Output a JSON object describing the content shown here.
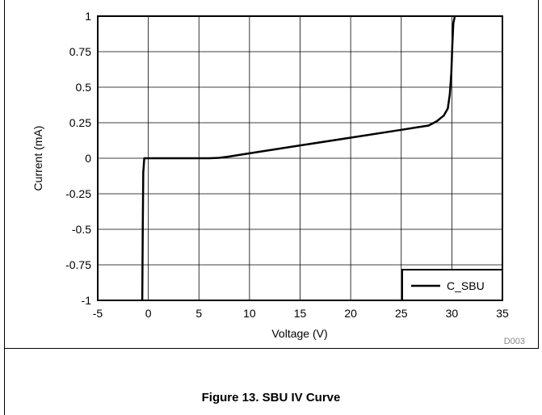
{
  "figure_caption": "Figure 13. SBU IV Curve",
  "figure_id": "D003",
  "chart_data": {
    "type": "line",
    "xlabel": "Voltage (V)",
    "ylabel": "Current (mA)",
    "xlim": [
      -5,
      35
    ],
    "ylim": [
      -1,
      1
    ],
    "xticks": [
      -5,
      0,
      5,
      10,
      15,
      20,
      25,
      30,
      35
    ],
    "xtick_labels": [
      "-5",
      "0",
      "5",
      "10",
      "15",
      "20",
      "25",
      "30",
      "35"
    ],
    "yticks": [
      -1,
      -0.75,
      -0.5,
      -0.25,
      0,
      0.25,
      0.5,
      0.75,
      1
    ],
    "ytick_labels": [
      "-1",
      "-0.75",
      "-0.5",
      "-0.25",
      "0",
      "0.25",
      "0.5",
      "0.75",
      "1"
    ],
    "grid": true,
    "legend_position": "bottom-right",
    "series": [
      {
        "name": "C_SBU",
        "color": "#000000",
        "x": [
          -0.6,
          -0.55,
          -0.5,
          -0.4,
          0,
          2,
          4,
          6,
          7,
          8,
          10,
          15,
          20,
          25,
          27.7,
          28.5,
          29.2,
          29.6,
          29.8,
          29.95,
          30.05,
          30.15,
          30.3
        ],
        "y": [
          -1,
          -0.5,
          -0.1,
          0,
          0,
          0,
          0,
          0,
          0.003,
          0.012,
          0.035,
          0.09,
          0.145,
          0.2,
          0.23,
          0.26,
          0.3,
          0.35,
          0.45,
          0.6,
          0.8,
          0.95,
          1
        ]
      }
    ]
  }
}
